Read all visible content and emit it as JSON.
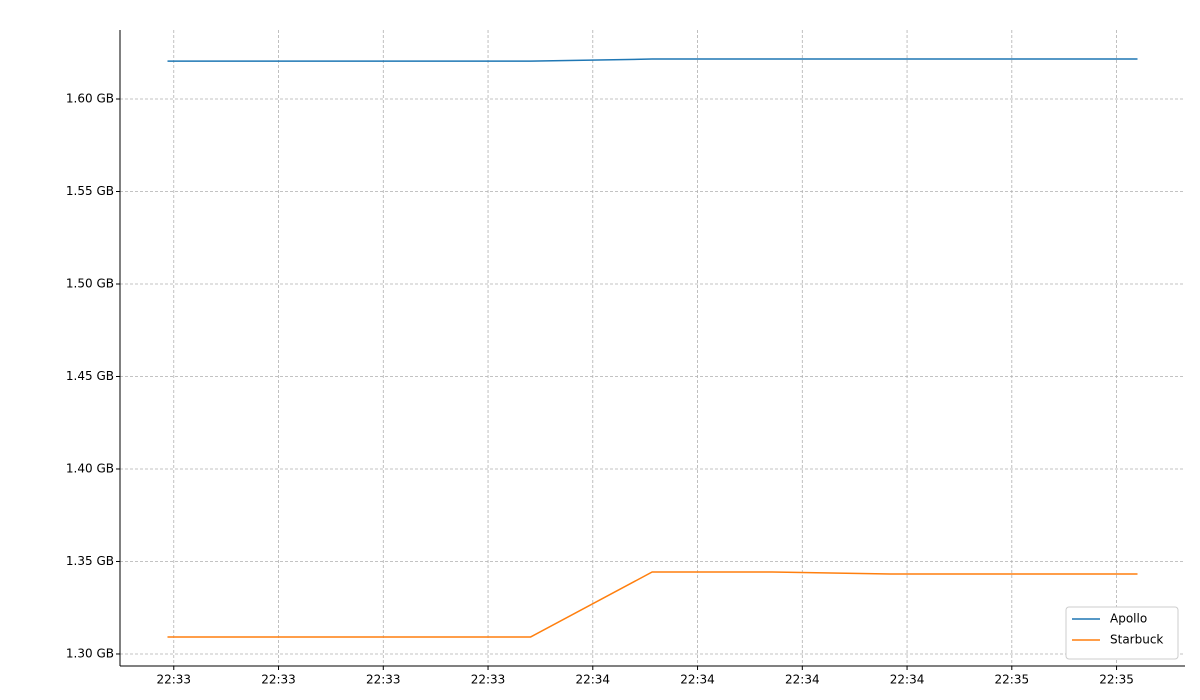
{
  "chart_data": {
    "type": "line",
    "x": [
      81179.1,
      81196.5,
      81213.8,
      81231.1,
      81248.5,
      81265.7,
      81283.0,
      81300.3,
      81318.0
    ],
    "series": [
      {
        "name": "Apollo",
        "color": "#1f77b4",
        "values": [
          1.6205,
          1.6205,
          1.6205,
          1.6205,
          1.6216,
          1.6216,
          1.6216,
          1.6216,
          1.6216
        ]
      },
      {
        "name": "Starbuck",
        "color": "#ff7f0e",
        "values": [
          1.3092,
          1.3092,
          1.3092,
          1.3092,
          1.3443,
          1.3443,
          1.3432,
          1.3432,
          1.3432
        ]
      }
    ],
    "xlim": [
      81172.3,
      81324.8
    ],
    "xticks": [
      {
        "value": 81180,
        "label": "22:33"
      },
      {
        "value": 81195,
        "label": "22:33"
      },
      {
        "value": 81210,
        "label": "22:33"
      },
      {
        "value": 81225,
        "label": "22:33"
      },
      {
        "value": 81240,
        "label": "22:34"
      },
      {
        "value": 81255,
        "label": "22:34"
      },
      {
        "value": 81270,
        "label": "22:34"
      },
      {
        "value": 81285,
        "label": "22:34"
      },
      {
        "value": 81300,
        "label": "22:35"
      },
      {
        "value": 81315,
        "label": "22:35"
      }
    ],
    "ylim": [
      1.2935,
      1.6373
    ],
    "yticks": [
      {
        "value": 1.3,
        "label": "1.30 GB"
      },
      {
        "value": 1.35,
        "label": "1.35 GB"
      },
      {
        "value": 1.4,
        "label": "1.40 GB"
      },
      {
        "value": 1.45,
        "label": "1.45 GB"
      },
      {
        "value": 1.5,
        "label": "1.50 GB"
      },
      {
        "value": 1.55,
        "label": "1.55 GB"
      },
      {
        "value": 1.6,
        "label": "1.60 GB"
      }
    ],
    "grid": true,
    "legend": "lower right"
  }
}
